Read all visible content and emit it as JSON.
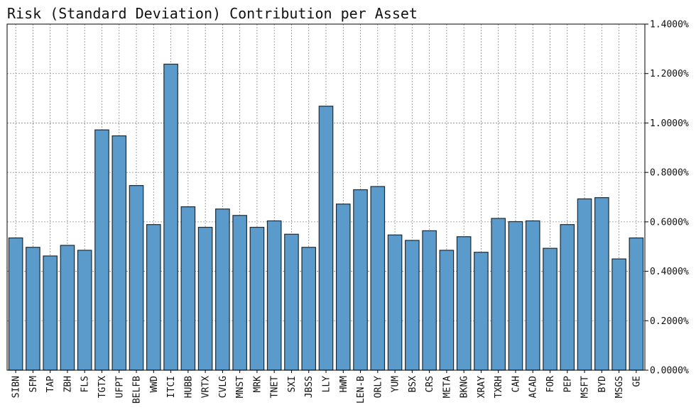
{
  "chart_data": {
    "type": "bar",
    "title": "Risk (Standard Deviation) Contribution per Asset",
    "xlabel": "",
    "ylabel": "",
    "ylim": [
      0,
      1.4
    ],
    "ytick_values": [
      0,
      0.2,
      0.4,
      0.6,
      0.8,
      1.0,
      1.2,
      1.4
    ],
    "ytick_labels": [
      "0.0000%",
      "0.2000%",
      "0.4000%",
      "0.6000%",
      "0.8000%",
      "1.0000%",
      "1.2000%",
      "1.4000%"
    ],
    "y_axis_position": "right",
    "grid": true,
    "bar_color": "#5b9bcb",
    "categories": [
      "SIBN",
      "SFM",
      "TAP",
      "ZBH",
      "FLS",
      "TGTX",
      "UFPT",
      "BELFB",
      "WWD",
      "ITCI",
      "HUBB",
      "VRTX",
      "CVLG",
      "MNST",
      "MRK",
      "TNET",
      "SXI",
      "JBSS",
      "LLY",
      "HWM",
      "LEN-B",
      "ORLY",
      "YUM",
      "BSX",
      "CRS",
      "META",
      "BKNG",
      "XRAY",
      "TXRH",
      "CAH",
      "ACAD",
      "FOR",
      "PEP",
      "MSFT",
      "BYD",
      "MSGS",
      "GE"
    ],
    "values": [
      0.535,
      0.497,
      0.462,
      0.505,
      0.485,
      0.972,
      0.948,
      0.747,
      0.589,
      1.238,
      0.661,
      0.578,
      0.652,
      0.626,
      0.578,
      0.604,
      0.55,
      0.497,
      1.068,
      0.672,
      0.73,
      0.743,
      0.547,
      0.525,
      0.564,
      0.485,
      0.54,
      0.477,
      0.614,
      0.601,
      0.604,
      0.493,
      0.589,
      0.693,
      0.698,
      0.45,
      0.535
    ]
  }
}
